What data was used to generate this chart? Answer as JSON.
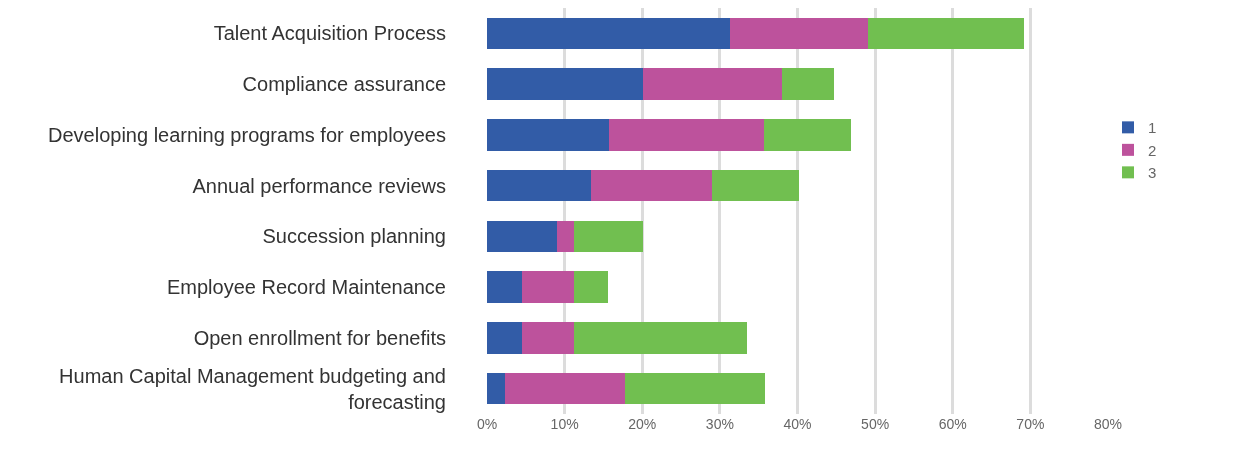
{
  "chart_data": {
    "type": "bar",
    "orientation": "horizontal",
    "stacked": true,
    "categories": [
      "Talent Acquisition Process",
      "Compliance assurance",
      "Developing learning programs for employees",
      "Annual performance reviews",
      "Succession planning",
      "Employee Record Maintenance",
      "Open enrollment for benefits",
      "Human Capital Management budgeting and forecasting"
    ],
    "series": [
      {
        "name": "1",
        "color": "#325ca7",
        "values": [
          31.3,
          20.1,
          15.7,
          13.4,
          9.0,
          4.5,
          4.5,
          2.3
        ]
      },
      {
        "name": "2",
        "color": "#bd529c",
        "values": [
          17.8,
          17.9,
          20.0,
          15.6,
          2.2,
          6.7,
          6.7,
          15.5
        ]
      },
      {
        "name": "3",
        "color": "#71bf50",
        "values": [
          20.1,
          6.7,
          11.2,
          11.2,
          8.9,
          4.4,
          22.3,
          18.0
        ]
      }
    ],
    "xlim": [
      0,
      80
    ],
    "xticks": [
      {
        "value": 0,
        "label": "0%"
      },
      {
        "value": 10,
        "label": "10%"
      },
      {
        "value": 20,
        "label": "20%"
      },
      {
        "value": 30,
        "label": "30%"
      },
      {
        "value": 40,
        "label": "40%"
      },
      {
        "value": 50,
        "label": "50%"
      },
      {
        "value": 60,
        "label": "60%"
      },
      {
        "value": 70,
        "label": "70%"
      },
      {
        "value": 80,
        "label": "80%"
      }
    ],
    "grid": "x",
    "legend": "right"
  }
}
